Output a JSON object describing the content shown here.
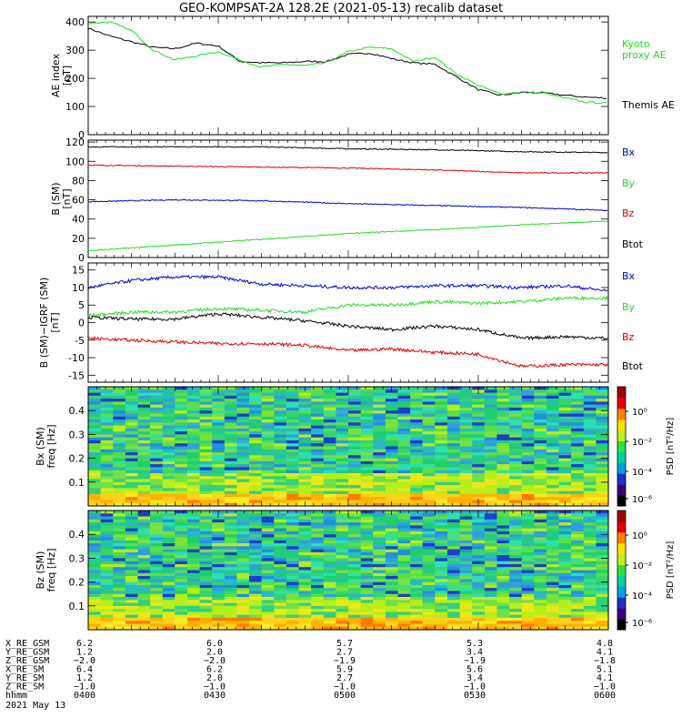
{
  "title": "GEO-KOMPSAT-2A 128.2E (2021-05-13) recalib dataset",
  "colors": {
    "black": "#000000",
    "red": "#e00000",
    "green": "#22dd22",
    "blue": "#0000cc"
  },
  "chart_data": [
    {
      "type": "line",
      "panel": "ae",
      "ylabel": [
        "AE index",
        "[nT]"
      ],
      "ylim": [
        0,
        420
      ],
      "yticks": [
        0,
        100,
        200,
        300,
        400
      ],
      "x": [
        "04:00",
        "04:05",
        "04:10",
        "04:15",
        "04:20",
        "04:25",
        "04:30",
        "04:35",
        "04:40",
        "04:45",
        "04:50",
        "04:55",
        "05:00",
        "05:05",
        "05:10",
        "05:15",
        "05:20",
        "05:25",
        "05:30",
        "05:35",
        "05:40",
        "05:45",
        "05:50",
        "05:55",
        "06:00"
      ],
      "series": [
        {
          "name": "Themis AE",
          "color": "#000000",
          "values": [
            378,
            350,
            330,
            310,
            305,
            325,
            315,
            260,
            255,
            255,
            260,
            260,
            285,
            290,
            270,
            255,
            250,
            205,
            160,
            140,
            150,
            148,
            140,
            133,
            130
          ]
        },
        {
          "name": "Kyoto proxy AE",
          "color": "#22dd22",
          "values": [
            395,
            400,
            370,
            300,
            265,
            280,
            295,
            265,
            240,
            250,
            245,
            255,
            295,
            310,
            305,
            260,
            275,
            215,
            175,
            145,
            152,
            148,
            130,
            115,
            112
          ]
        }
      ],
      "legend": [
        "Kyoto",
        "proxy AE",
        "Themis AE"
      ]
    },
    {
      "type": "line",
      "panel": "b_sm",
      "ylabel": [
        "B (SM)",
        "[nT]"
      ],
      "ylim": [
        0,
        122
      ],
      "yticks": [
        0,
        20,
        40,
        60,
        80,
        100,
        120
      ],
      "x": [
        "04:00",
        "04:20",
        "04:40",
        "05:00",
        "05:20",
        "05:40",
        "06:00"
      ],
      "series": [
        {
          "name": "Bx",
          "color": "#000000",
          "values": [
            115,
            115,
            115,
            113,
            112,
            110,
            109
          ]
        },
        {
          "name": "By",
          "color": "#e00000",
          "values": [
            96,
            95,
            94,
            93,
            91,
            88,
            88
          ]
        },
        {
          "name": "Bz",
          "color": "#0000cc",
          "values": [
            58,
            60,
            59,
            56,
            54,
            52,
            49
          ]
        },
        {
          "name": "Btot",
          "color": "#22dd22",
          "values": [
            7,
            13,
            19,
            25,
            29,
            34,
            38
          ]
        }
      ],
      "legend": [
        "Bx",
        "By",
        "Bz",
        "Btot"
      ]
    },
    {
      "type": "line",
      "panel": "db_sm",
      "ylabel": [
        "B (SM)−IGRF (SM)",
        "[nT]"
      ],
      "ylim": [
        -17,
        17
      ],
      "yticks": [
        -15,
        -10,
        -5,
        0,
        5,
        10,
        15
      ],
      "x": [
        "04:00",
        "04:10",
        "04:20",
        "04:30",
        "04:40",
        "04:50",
        "05:00",
        "05:10",
        "05:20",
        "05:30",
        "05:40",
        "05:50",
        "06:00"
      ],
      "series": [
        {
          "name": "Bx",
          "color": "#0000cc",
          "values": [
            10,
            12,
            13,
            13,
            11,
            10.5,
            10,
            10,
            10.5,
            10.5,
            10,
            10.5,
            9
          ]
        },
        {
          "name": "By",
          "color": "#22dd22",
          "values": [
            2,
            3,
            3,
            4,
            3.5,
            3,
            5,
            5,
            6,
            5.5,
            6,
            7,
            7
          ]
        },
        {
          "name": "Bz",
          "color": "#000000",
          "values": [
            1.5,
            1,
            1,
            2.5,
            1.5,
            0.5,
            -1,
            -2,
            -1,
            -2,
            -4.5,
            -4,
            -4.5
          ]
        },
        {
          "name": "Btot",
          "color": "#e00000",
          "values": [
            -4.5,
            -5,
            -5.5,
            -6,
            -6,
            -6.5,
            -8,
            -7.5,
            -8.5,
            -9,
            -12.5,
            -12,
            -12
          ]
        }
      ],
      "legend": [
        "Bx",
        "By",
        "Bz",
        "Btot"
      ]
    },
    {
      "type": "heatmap",
      "panel": "spec_bx",
      "ylabel": [
        "Bx (SM)",
        "freq [Hz]"
      ],
      "ylim": [
        0,
        0.5
      ],
      "yticks": [
        0.1,
        0.2,
        0.3,
        0.4
      ],
      "colorbar": {
        "label": "PSD [nT²/Hz]",
        "ticks": [
          "10⁰",
          "10⁻²",
          "10⁻⁴",
          "10⁻⁶"
        ]
      },
      "note": "log PSD spectrogram, mostly green/cyan at high freq, yellow-orange at low freq"
    },
    {
      "type": "heatmap",
      "panel": "spec_bz",
      "ylabel": [
        "Bz (SM)",
        "freq [Hz]"
      ],
      "ylim": [
        0,
        0.5
      ],
      "yticks": [
        0.1,
        0.2,
        0.3,
        0.4
      ],
      "colorbar": {
        "label": "PSD [nT²/Hz]",
        "ticks": [
          "10⁰",
          "10⁻²",
          "10⁻⁴",
          "10⁻⁶"
        ]
      }
    }
  ],
  "ephemeris": {
    "rows": [
      {
        "label": "X_RE_GSM",
        "values": [
          "6.2",
          "6.0",
          "5.7",
          "5.3",
          "4.8"
        ]
      },
      {
        "label": "Y_RE_GSM",
        "values": [
          "1.2",
          "2.0",
          "2.7",
          "3.4",
          "4.1"
        ]
      },
      {
        "label": "Z_RE_GSM",
        "values": [
          "−2.0",
          "−2.0",
          "−1.9",
          "−1.9",
          "−1.8"
        ]
      },
      {
        "label": "X_RE_SM",
        "values": [
          "6.4",
          "6.2",
          "5.9",
          "5.6",
          "5.1"
        ]
      },
      {
        "label": "Y_RE_SM",
        "values": [
          "1.2",
          "2.0",
          "2.7",
          "3.4",
          "4.1"
        ]
      },
      {
        "label": "Z_RE_SM",
        "values": [
          "−1.0",
          "−1.0",
          "−1.0",
          "−1.0",
          "−1.0"
        ]
      },
      {
        "label": "hhmm",
        "values": [
          "0400",
          "0430",
          "0500",
          "0530",
          "0600"
        ]
      }
    ],
    "date": "2021 May 13"
  }
}
